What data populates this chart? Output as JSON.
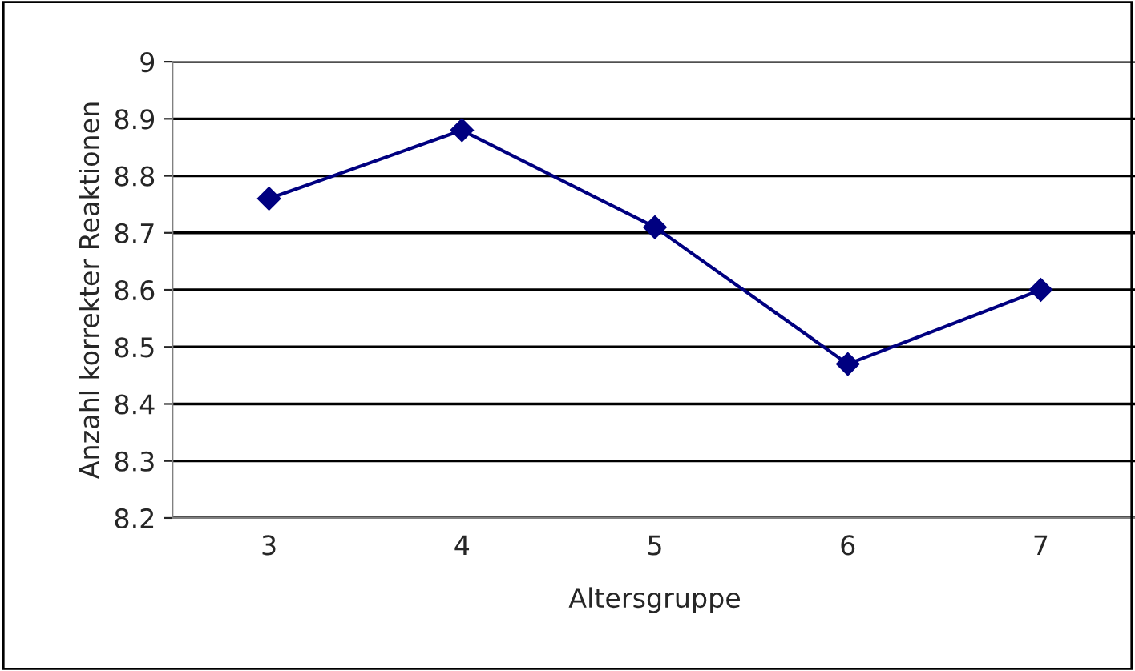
{
  "chart_data": {
    "type": "line",
    "xlabel": "Altersgruppe",
    "ylabel": "Anzahl korrekter Reaktionen",
    "categories": [
      "3",
      "4",
      "5",
      "6",
      "7"
    ],
    "series": [
      {
        "color": "#000080",
        "values": [
          8.76,
          8.88,
          8.71,
          8.47,
          8.6
        ]
      }
    ],
    "ylim": [
      8.2,
      9
    ],
    "yticks": [
      {
        "value": 8.2,
        "label": "8.2"
      },
      {
        "value": 8.3,
        "label": "8.3"
      },
      {
        "value": 8.4,
        "label": "8.4"
      },
      {
        "value": 8.5,
        "label": "8.5"
      },
      {
        "value": 8.6,
        "label": "8.6"
      },
      {
        "value": 8.7,
        "label": "8.7"
      },
      {
        "value": 8.8,
        "label": "8.8"
      },
      {
        "value": 8.9,
        "label": "8.9"
      },
      {
        "value": 9,
        "label": "9"
      }
    ],
    "grid": "y",
    "marker": "diamond",
    "line_style": "solid",
    "legend": false
  }
}
